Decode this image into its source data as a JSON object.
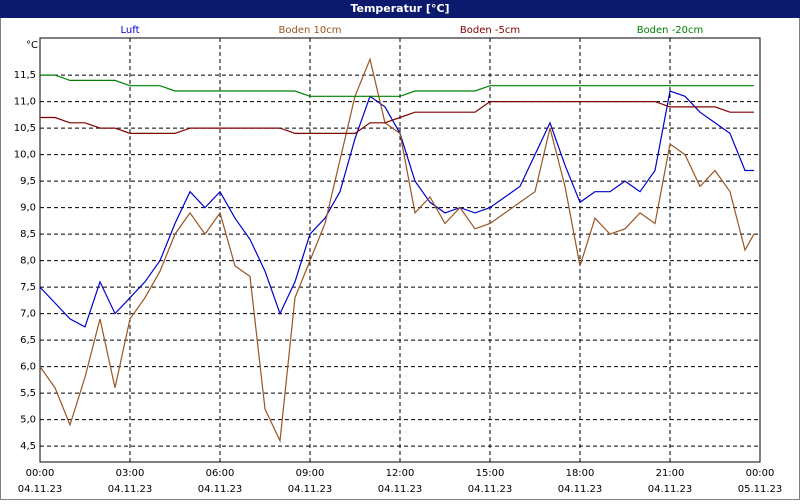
{
  "chart_data": {
    "type": "line",
    "title": "Temperatur [°C]",
    "ylabel": "°C",
    "grid": true,
    "x": [
      0,
      0.5,
      1,
      1.5,
      2,
      2.5,
      3,
      3.5,
      4,
      4.5,
      5,
      5.5,
      6,
      6.5,
      7,
      7.5,
      8,
      8.5,
      9,
      9.5,
      10,
      10.5,
      11,
      11.5,
      12,
      12.5,
      13,
      13.5,
      14,
      14.5,
      15,
      15.5,
      16,
      16.5,
      17,
      17.5,
      18,
      18.5,
      19,
      19.5,
      20,
      20.5,
      21,
      21.5,
      22,
      22.5,
      23,
      23.5,
      23.8
    ],
    "xlim": [
      0,
      24
    ],
    "xticks": [
      {
        "value": 0,
        "label": "00:00",
        "date": "04.11.23"
      },
      {
        "value": 3,
        "label": "03:00",
        "date": "04.11.23"
      },
      {
        "value": 6,
        "label": "06:00",
        "date": "04.11.23"
      },
      {
        "value": 9,
        "label": "09:00",
        "date": "04.11.23"
      },
      {
        "value": 12,
        "label": "12:00",
        "date": "04.11.23"
      },
      {
        "value": 15,
        "label": "15:00",
        "date": "04.11.23"
      },
      {
        "value": 18,
        "label": "18:00",
        "date": "04.11.23"
      },
      {
        "value": 21,
        "label": "21:00",
        "date": "04.11.23"
      },
      {
        "value": 24,
        "label": "00:00",
        "date": "05.11.23"
      }
    ],
    "ylim": [
      4.2,
      12.2
    ],
    "yticks": [
      {
        "value": 4.5,
        "label": "4,5"
      },
      {
        "value": 5,
        "label": "5,0"
      },
      {
        "value": 5.5,
        "label": "5,5"
      },
      {
        "value": 6,
        "label": "6,0"
      },
      {
        "value": 6.5,
        "label": "6,5"
      },
      {
        "value": 7,
        "label": "7,0"
      },
      {
        "value": 7.5,
        "label": "7,5"
      },
      {
        "value": 8,
        "label": "8,0"
      },
      {
        "value": 8.5,
        "label": "8,5"
      },
      {
        "value": 9,
        "label": "9,0"
      },
      {
        "value": 9.5,
        "label": "9,5"
      },
      {
        "value": 10,
        "label": "10,0"
      },
      {
        "value": 10.5,
        "label": "10,5"
      },
      {
        "value": 11,
        "label": "11,0"
      },
      {
        "value": 11.5,
        "label": "11,5"
      }
    ],
    "series": [
      {
        "name": "Luft",
        "color": "#0000cc",
        "values": [
          7.5,
          7.2,
          6.9,
          6.75,
          7.6,
          7.0,
          7.3,
          7.6,
          8.0,
          8.7,
          9.3,
          9.0,
          9.3,
          8.8,
          8.4,
          7.8,
          7.0,
          7.6,
          8.5,
          8.8,
          9.3,
          10.3,
          11.1,
          10.9,
          10.4,
          9.5,
          9.1,
          8.9,
          9.0,
          8.9,
          9.0,
          9.2,
          9.4,
          10.0,
          10.6,
          9.8,
          9.1,
          9.3,
          9.3,
          9.5,
          9.3,
          9.7,
          11.2,
          11.1,
          10.8,
          10.6,
          10.4,
          9.7,
          9.7
        ]
      },
      {
        "name": "Boden 10cm",
        "color": "#995522",
        "values": [
          6.0,
          5.6,
          4.9,
          5.8,
          6.9,
          5.6,
          6.9,
          7.3,
          7.8,
          8.5,
          8.9,
          8.5,
          8.9,
          7.9,
          7.7,
          5.2,
          4.6,
          7.3,
          8.0,
          8.7,
          9.9,
          11.1,
          11.8,
          10.6,
          10.4,
          8.9,
          9.2,
          8.7,
          9.0,
          8.6,
          8.7,
          8.9,
          9.1,
          9.3,
          10.5,
          9.4,
          7.9,
          8.8,
          8.5,
          8.6,
          8.9,
          8.7,
          10.2,
          10.0,
          9.4,
          9.7,
          9.3,
          8.2,
          8.5
        ]
      },
      {
        "name": "Boden -5cm",
        "color": "#800000",
        "values": [
          10.7,
          10.7,
          10.6,
          10.6,
          10.5,
          10.5,
          10.4,
          10.4,
          10.4,
          10.4,
          10.5,
          10.5,
          10.5,
          10.5,
          10.5,
          10.5,
          10.5,
          10.4,
          10.4,
          10.4,
          10.4,
          10.4,
          10.6,
          10.6,
          10.7,
          10.8,
          10.8,
          10.8,
          10.8,
          10.8,
          11.0,
          11.0,
          11.0,
          11.0,
          11.0,
          11.0,
          11.0,
          11.0,
          11.0,
          11.0,
          11.0,
          11.0,
          10.9,
          10.9,
          10.9,
          10.9,
          10.8,
          10.8,
          10.8
        ]
      },
      {
        "name": "Boden -20cm",
        "color": "#008000",
        "values": [
          11.5,
          11.5,
          11.4,
          11.4,
          11.4,
          11.4,
          11.3,
          11.3,
          11.3,
          11.2,
          11.2,
          11.2,
          11.2,
          11.2,
          11.2,
          11.2,
          11.2,
          11.2,
          11.1,
          11.1,
          11.1,
          11.1,
          11.1,
          11.1,
          11.1,
          11.2,
          11.2,
          11.2,
          11.2,
          11.2,
          11.3,
          11.3,
          11.3,
          11.3,
          11.3,
          11.3,
          11.3,
          11.3,
          11.3,
          11.3,
          11.3,
          11.3,
          11.3,
          11.3,
          11.3,
          11.3,
          11.3,
          11.3,
          11.3
        ]
      }
    ]
  }
}
